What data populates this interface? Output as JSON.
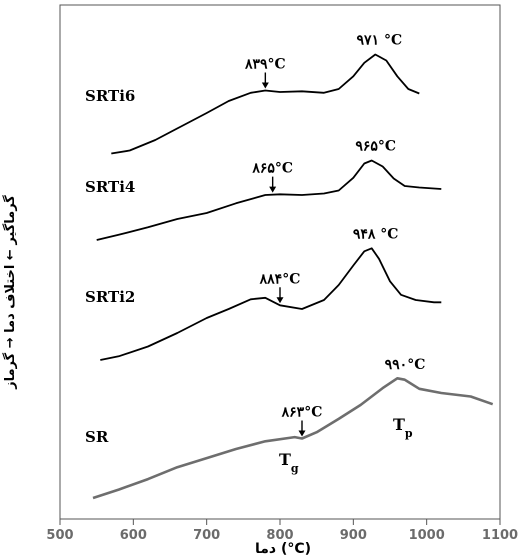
{
  "chart_data": {
    "type": "line",
    "xlabel": "دما (°C)",
    "ylabel": "گرماگیر ← اختلاف دما → گرماز",
    "xlim": [
      500,
      1100
    ],
    "xticks": [
      "500",
      "600",
      "700",
      "800",
      "900",
      "1000",
      "1100"
    ],
    "grid": false,
    "series": [
      {
        "name": "SRTi6",
        "color": "#000000",
        "x": [
          570,
          595,
          630,
          665,
          700,
          730,
          760,
          780,
          800,
          830,
          860,
          880,
          900,
          915,
          930,
          945,
          960,
          975,
          990
        ],
        "y": [
          0.2,
          0.6,
          2.0,
          3.8,
          5.6,
          7.2,
          8.3,
          8.6,
          8.4,
          8.5,
          8.3,
          8.8,
          10.5,
          12.3,
          13.4,
          12.6,
          10.5,
          8.8,
          8.2
        ]
      },
      {
        "name": "SRTi4",
        "color": "#000000",
        "x": [
          550,
          580,
          620,
          660,
          700,
          740,
          780,
          800,
          830,
          860,
          880,
          900,
          915,
          925,
          940,
          955,
          970,
          990,
          1020
        ],
        "y": [
          0.0,
          0.7,
          1.7,
          2.8,
          3.6,
          4.9,
          6.0,
          6.1,
          6.0,
          6.2,
          6.6,
          8.3,
          10.2,
          10.6,
          9.8,
          8.2,
          7.2,
          7.0,
          6.8
        ]
      },
      {
        "name": "SRTi2",
        "color": "#000000",
        "x": [
          555,
          580,
          620,
          660,
          700,
          730,
          760,
          780,
          800,
          830,
          860,
          880,
          900,
          915,
          925,
          935,
          950,
          965,
          985,
          1010,
          1020
        ],
        "y": [
          0.0,
          0.5,
          1.8,
          3.6,
          5.6,
          6.8,
          8.1,
          8.3,
          7.3,
          6.8,
          8.0,
          10.0,
          12.6,
          14.5,
          14.9,
          13.5,
          10.5,
          8.7,
          8.0,
          7.7,
          7.7
        ]
      },
      {
        "name": "SR",
        "color": "#6e6e6e",
        "x": [
          545,
          580,
          620,
          660,
          700,
          740,
          780,
          820,
          830,
          850,
          880,
          910,
          940,
          960,
          970,
          990,
          1020,
          1060,
          1090
        ],
        "y": [
          0.0,
          1.2,
          2.7,
          4.4,
          5.7,
          7.0,
          8.1,
          8.7,
          8.5,
          9.4,
          11.3,
          13.3,
          15.7,
          17.1,
          16.9,
          15.6,
          15.0,
          14.5,
          13.4
        ]
      }
    ],
    "annotations": [
      {
        "series": "SRTi6",
        "text": "۸۳۹°C",
        "x": 780
      },
      {
        "series": "SRTi6",
        "text": "۹۷۱ °C",
        "x": 930
      },
      {
        "series": "SRTi4",
        "text": "۸۶۵°C",
        "x": 790
      },
      {
        "series": "SRTi4",
        "text": "۹۶۵°C",
        "x": 925
      },
      {
        "series": "SRTi2",
        "text": "۸۸۴°C",
        "x": 800
      },
      {
        "series": "SRTi2",
        "text": "۹۴۸ °C",
        "x": 925
      },
      {
        "series": "SR",
        "text": "۸۶۳°C",
        "x": 830
      },
      {
        "series": "SR",
        "text": "۹۹۰°C",
        "x": 965
      }
    ],
    "symbols": {
      "tg": "T",
      "tg_sub": "g",
      "tp": "T",
      "tp_sub": "p"
    }
  }
}
